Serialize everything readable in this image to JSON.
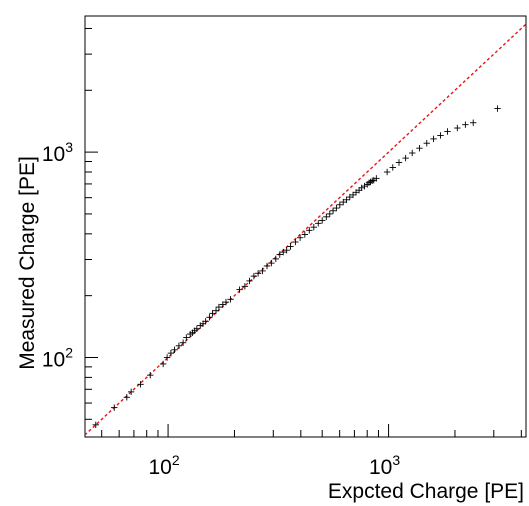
{
  "chart_data": {
    "type": "scatter",
    "title": "",
    "xlabel": "Expcted Charge [PE]",
    "ylabel": "Measured Charge [PE]",
    "xscale": "log",
    "yscale": "log",
    "xlim": [
      42,
      4200
    ],
    "ylim": [
      41,
      4600
    ],
    "x_ticks": [
      {
        "value": 100,
        "base": "10",
        "exp": "2"
      },
      {
        "value": 1000,
        "base": "10",
        "exp": "3"
      }
    ],
    "y_ticks": [
      {
        "value": 100,
        "base": "10",
        "exp": "2"
      },
      {
        "value": 1000,
        "base": "10",
        "exp": "3"
      }
    ],
    "grid": false,
    "reference_line": {
      "slope": 1,
      "color": "#e8161a",
      "style": "dashed"
    },
    "marker_color": "#000000",
    "series": [
      {
        "x": [
          47,
          57,
          65,
          68,
          75,
          83,
          95,
          99,
          103,
          107,
          112,
          117,
          121,
          126,
          129,
          132,
          135,
          140,
          144,
          148,
          154,
          159,
          165,
          170,
          177,
          183,
          192,
          211,
          223,
          234,
          245,
          256,
          268,
          281,
          294,
          308,
          321,
          333,
          345,
          359,
          378,
          397,
          417,
          437,
          458,
          480,
          500,
          522,
          541,
          560,
          580,
          601,
          623,
          645,
          667,
          690,
          712,
          735,
          755,
          778,
          800,
          815,
          828,
          843,
          857,
          880,
          985,
          1045,
          1115,
          1195,
          1280,
          1380,
          1490,
          1600,
          1720,
          1850,
          2050,
          2230,
          2420,
          3120
        ],
        "y": [
          47,
          57,
          64,
          68,
          74,
          82,
          93,
          100,
          105,
          109,
          114,
          118,
          125,
          130,
          132,
          135,
          138,
          143,
          146,
          150,
          157,
          164,
          169,
          176,
          181,
          186,
          192,
          214,
          222,
          236,
          249,
          257,
          264,
          279,
          288,
          302,
          317,
          326,
          333,
          347,
          365,
          383,
          397,
          416,
          431,
          450,
          465,
          484,
          500,
          518,
          534,
          554,
          571,
          586,
          604,
          619,
          637,
          652,
          670,
          683,
          696,
          709,
          716,
          725,
          730,
          745,
          800,
          842,
          890,
          935,
          990,
          1045,
          1105,
          1160,
          1205,
          1260,
          1310,
          1360,
          1390,
          1630
        ]
      }
    ]
  }
}
